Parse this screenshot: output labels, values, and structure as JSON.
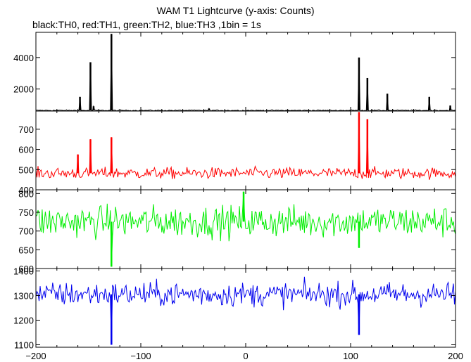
{
  "title": "WAM T1 Lightcurve (y-axis: Counts)",
  "subtitle": "black:TH0, red:TH1, green:TH2, blue:TH3 ,1bin = 1s",
  "chart_data": {
    "type": "line",
    "title": "WAM T1 Lightcurve (y-axis: Counts)",
    "subtitle": "black:TH0, red:TH1, green:TH2, blue:TH3 ,1bin = 1s",
    "x": {
      "range": [
        -200,
        200
      ],
      "ticks": [
        -200,
        -100,
        0,
        100,
        200
      ],
      "tick_labels": [
        "−200",
        "−100",
        "0",
        "100",
        "200"
      ]
    },
    "grid": false,
    "panels": [
      {
        "name": "TH0",
        "color": "#000000",
        "ylim": [
          600,
          5600
        ],
        "yticks": [
          2000,
          4000
        ],
        "baseline": 640,
        "noise": 25,
        "spikes": [
          {
            "x": -158,
            "y": 1500
          },
          {
            "x": -148,
            "y": 3700
          },
          {
            "x": -145,
            "y": 900
          },
          {
            "x": -128,
            "y": 5500
          },
          {
            "x": -35,
            "y": 760
          },
          {
            "x": 108,
            "y": 4000
          },
          {
            "x": 116,
            "y": 2700
          },
          {
            "x": 135,
            "y": 1700
          },
          {
            "x": 175,
            "y": 1500
          },
          {
            "x": 195,
            "y": 950
          }
        ]
      },
      {
        "name": "TH1",
        "color": "#ff0000",
        "ylim": [
          400,
          790
        ],
        "yticks": [
          400,
          500,
          600,
          700
        ],
        "baseline": 482,
        "noise": 20,
        "spikes": [
          {
            "x": -160,
            "y": 575
          },
          {
            "x": -148,
            "y": 650
          },
          {
            "x": -128,
            "y": 660
          },
          {
            "x": 108,
            "y": 785
          },
          {
            "x": 116,
            "y": 750
          }
        ]
      },
      {
        "name": "TH2",
        "color": "#00ee00",
        "ylim": [
          600,
          810
        ],
        "yticks": [
          600,
          650,
          700,
          750,
          800
        ],
        "baseline": 725,
        "noise": 30,
        "spikes": [
          {
            "x": -128,
            "y": 605
          },
          {
            "x": -2,
            "y": 805
          },
          {
            "x": 108,
            "y": 655
          }
        ]
      },
      {
        "name": "TH3",
        "color": "#0000ee",
        "ylim": [
          1090,
          1410
        ],
        "yticks": [
          1100,
          1200,
          1300,
          1400
        ],
        "baseline": 1305,
        "noise": 35,
        "spikes": [
          {
            "x": -128,
            "y": 1100
          },
          {
            "x": 108,
            "y": 1140
          }
        ]
      }
    ]
  }
}
